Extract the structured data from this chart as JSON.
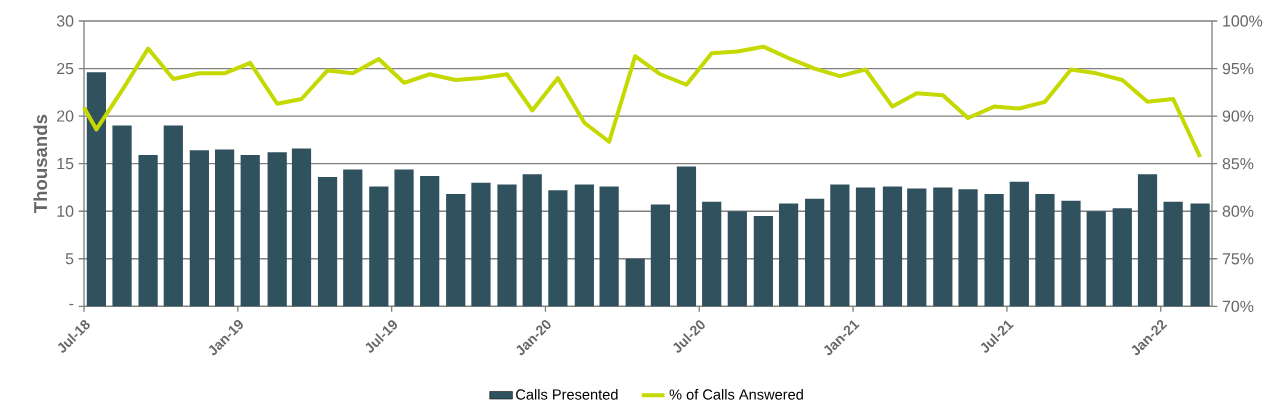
{
  "chart_data": {
    "type": "bar",
    "ylabel": "Thousands",
    "xlim": [
      "2018-07-01",
      "2022-03-01"
    ],
    "xticks": [
      {
        "value": "2018-07-01",
        "label": "Jul-18"
      },
      {
        "value": "2019-01-01",
        "label": "Jan-19"
      },
      {
        "value": "2019-07-01",
        "label": "Jul-19"
      },
      {
        "value": "2020-01-01",
        "label": "Jan-20"
      },
      {
        "value": "2020-07-01",
        "label": "Jul-20"
      },
      {
        "value": "2021-01-01",
        "label": "Jan-21"
      },
      {
        "value": "2021-07-01",
        "label": "Jul-21"
      },
      {
        "value": "2022-01-01",
        "label": "Jan-22"
      }
    ],
    "ylim": [
      0,
      30
    ],
    "yticks": [
      {
        "value": 0,
        "label": "-"
      },
      5,
      10,
      15,
      20,
      25,
      30
    ],
    "y2lim": [
      70,
      100
    ],
    "y2ticks": [
      {
        "value": 70,
        "label": "70%"
      },
      {
        "value": 75,
        "label": "75%"
      },
      {
        "value": 80,
        "label": "80%"
      },
      {
        "value": 85,
        "label": "85%"
      },
      {
        "value": 90,
        "label": "90%"
      },
      {
        "value": 95,
        "label": "95%"
      },
      {
        "value": 100,
        "label": "100%"
      }
    ],
    "x": [
      "2018-07-16",
      "2018-08-16",
      "2018-09-16",
      "2018-10-16",
      "2018-11-16",
      "2018-12-16",
      "2019-01-16",
      "2019-02-16",
      "2019-03-16",
      "2019-04-16",
      "2019-05-16",
      "2019-06-16",
      "2019-07-16",
      "2019-08-16",
      "2019-09-16",
      "2019-10-16",
      "2019-11-16",
      "2019-12-16",
      "2020-01-16",
      "2020-02-16",
      "2020-03-16",
      "2020-04-16",
      "2020-05-16",
      "2020-06-16",
      "2020-07-16",
      "2020-08-16",
      "2020-09-16",
      "2020-10-16",
      "2020-11-16",
      "2020-12-16",
      "2021-01-16",
      "2021-02-16",
      "2021-03-16",
      "2021-04-16",
      "2021-05-16",
      "2021-06-16",
      "2021-07-16",
      "2021-08-16",
      "2021-09-16",
      "2021-10-16",
      "2021-11-16",
      "2021-12-16",
      "2022-01-16",
      "2022-02-16"
    ],
    "series": [
      {
        "name": "Calls Presented",
        "color": "#30525f",
        "values": [
          24.6,
          19.0,
          15.9,
          19.0,
          16.4,
          16.5,
          15.9,
          16.2,
          16.6,
          13.6,
          14.4,
          12.6,
          14.4,
          13.7,
          11.8,
          13.0,
          12.8,
          13.9,
          12.2,
          12.8,
          12.6,
          5.0,
          10.7,
          14.7,
          11.0,
          10.0,
          9.5,
          10.8,
          11.3,
          12.8,
          12.5,
          12.6,
          12.4,
          12.5,
          12.3,
          11.8,
          13.1,
          11.8,
          11.1,
          10.0,
          10.3,
          13.9,
          11.0,
          10.8
        ]
      },
      {
        "name": "% of Calls Answered",
        "type": "line",
        "axis": "y2",
        "color": "#c5d900",
        "x": [
          "2018-07-01",
          "2018-07-16",
          "2018-08-16",
          "2018-09-16",
          "2018-10-16",
          "2018-11-16",
          "2018-12-16",
          "2019-01-16",
          "2019-02-16",
          "2019-03-16",
          "2019-04-16",
          "2019-05-16",
          "2019-06-16",
          "2019-07-16",
          "2019-08-16",
          "2019-09-16",
          "2019-10-16",
          "2019-11-16",
          "2019-12-16",
          "2020-01-16",
          "2020-02-16",
          "2020-03-16",
          "2020-04-16",
          "2020-05-16",
          "2020-06-16",
          "2020-07-16",
          "2020-08-16",
          "2020-09-16",
          "2020-10-16",
          "2020-11-16",
          "2020-12-16",
          "2021-01-16",
          "2021-02-16",
          "2021-03-16",
          "2021-04-16",
          "2021-05-16",
          "2021-06-16",
          "2021-07-16",
          "2021-08-16",
          "2021-09-16",
          "2021-10-16",
          "2021-11-16",
          "2021-12-16",
          "2022-01-16",
          "2022-02-16"
        ],
        "values": [
          90.9,
          88.6,
          92.7,
          97.1,
          93.9,
          94.5,
          94.5,
          95.6,
          91.3,
          91.8,
          94.8,
          94.5,
          96.0,
          93.5,
          94.4,
          93.8,
          94.0,
          94.4,
          90.6,
          94.0,
          89.3,
          87.3,
          96.3,
          94.4,
          93.3,
          96.6,
          96.8,
          97.3,
          96.1,
          95.0,
          94.2,
          94.9,
          91.0,
          92.4,
          92.2,
          89.8,
          91.0,
          90.8,
          91.5,
          94.9,
          94.5,
          93.8,
          91.5,
          91.8,
          85.7
        ]
      }
    ],
    "grid": "y",
    "legend": "bottom",
    "marker": "none",
    "line_style": "solid"
  }
}
